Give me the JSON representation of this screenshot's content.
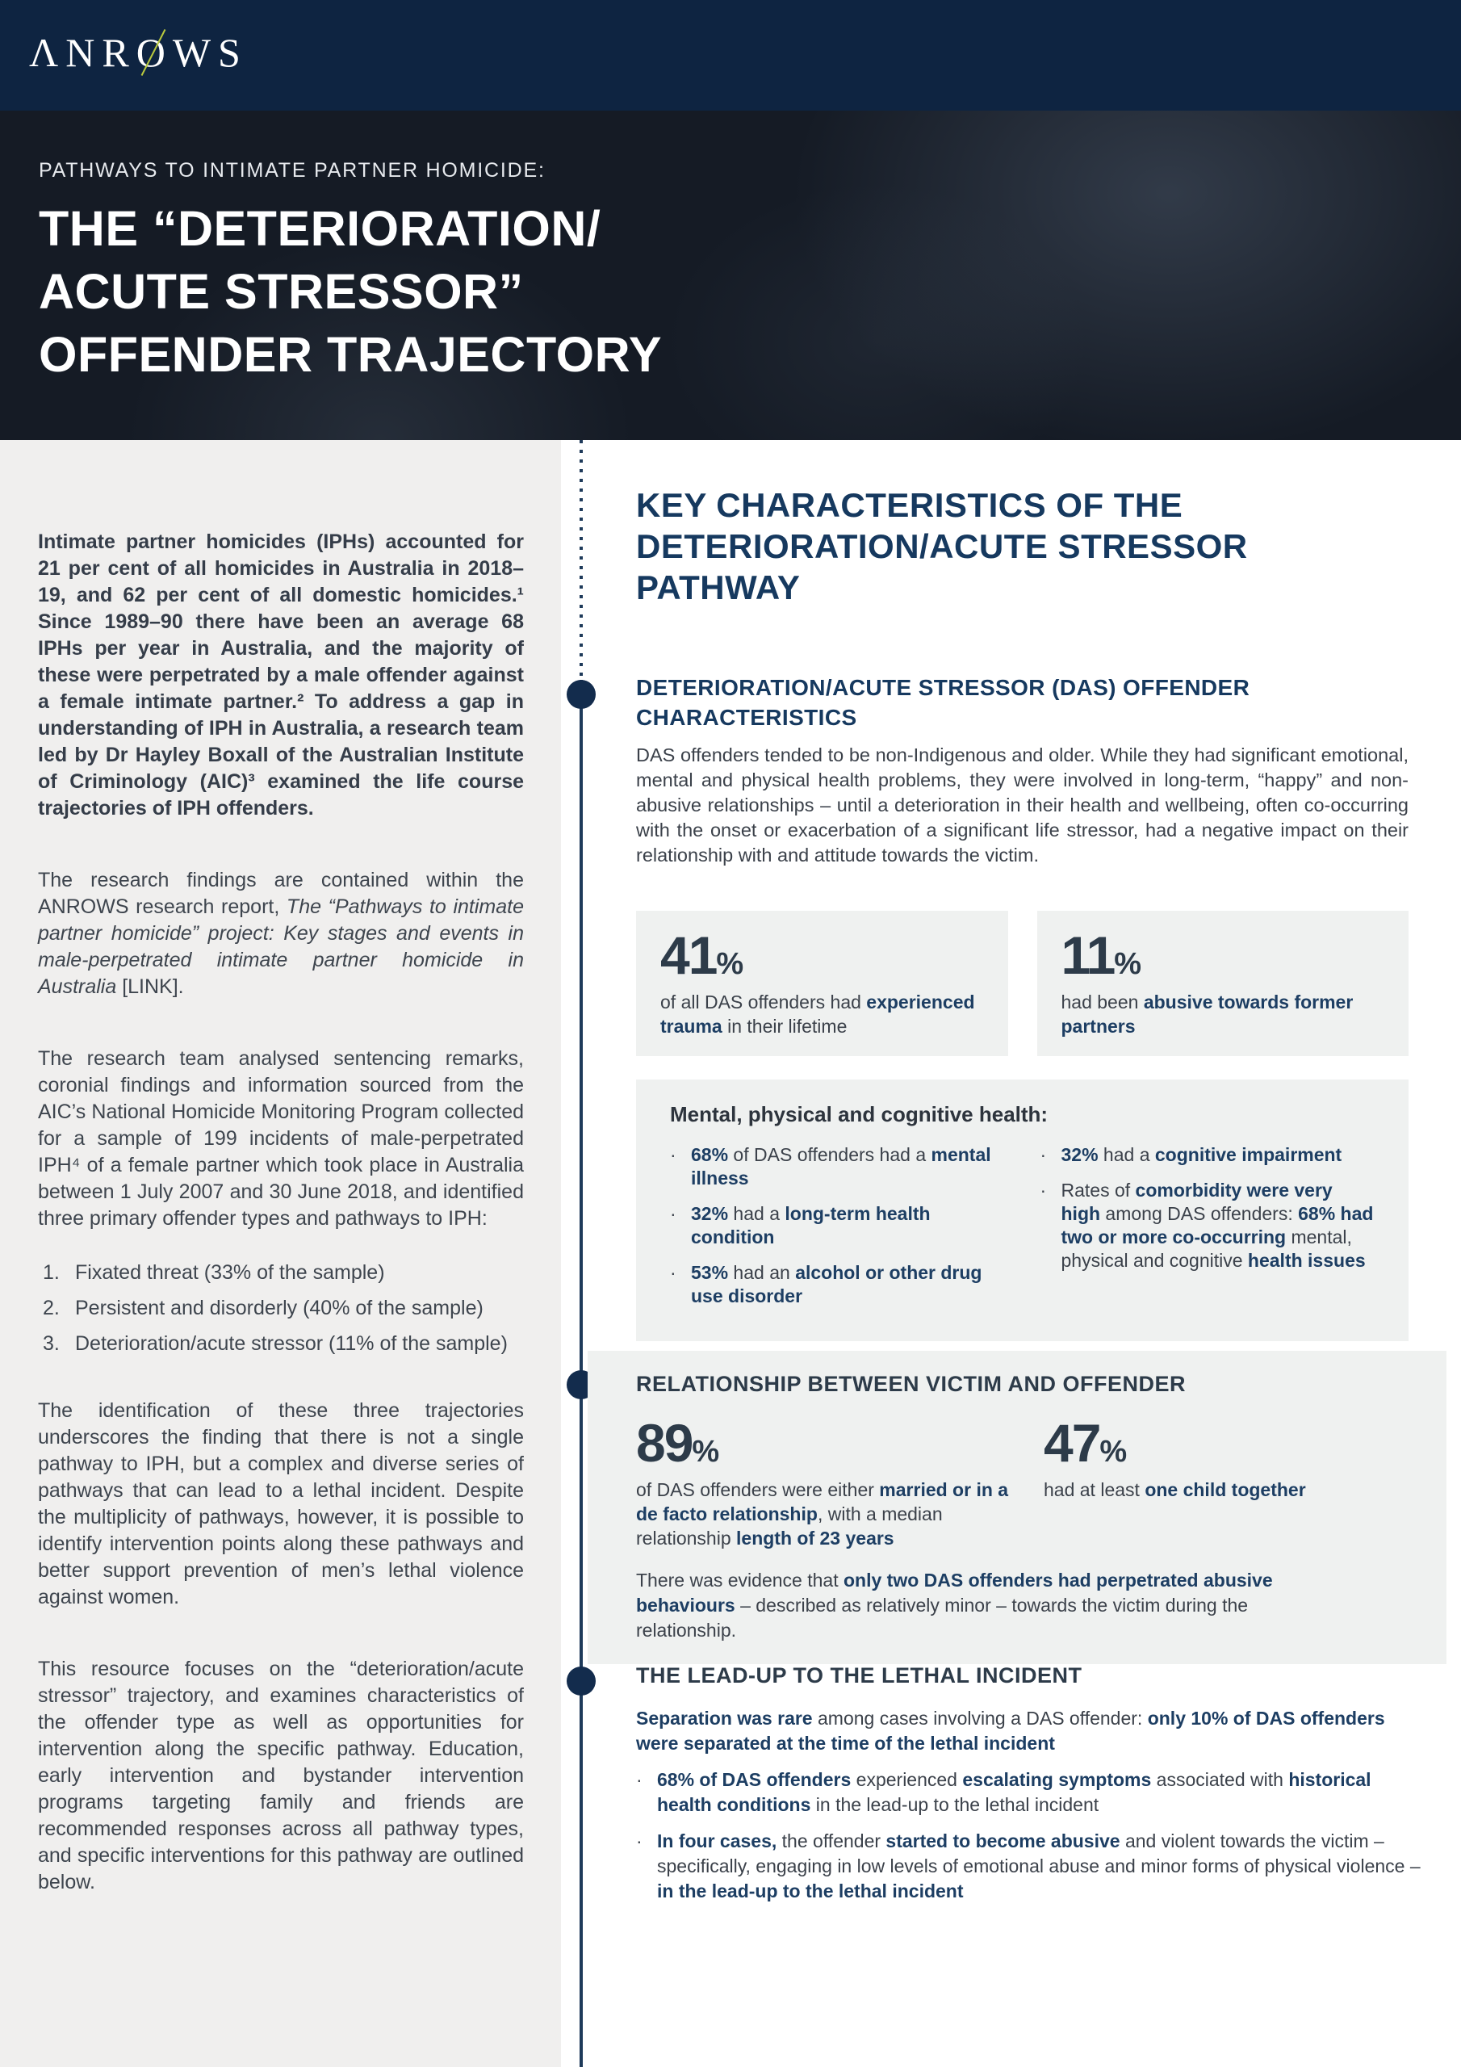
{
  "icons": {
    "bullet": "·"
  },
  "colors": {
    "topbar_navy": "#0e2441",
    "hero_bg": "#151b25",
    "heading_navy": "#16395f",
    "slate_heading": "#2d3b49",
    "bold_navy": "#1d3e63",
    "panel_bg": "#eff1f0",
    "left_bg": "#f0efee",
    "timeline": "#1e3a5a",
    "logo_slash": "#b9c93e"
  },
  "header": {
    "logo_pre": "ΛNR",
    "logo_o": "O",
    "logo_post": "WS"
  },
  "hero": {
    "eyebrow": "PATHWAYS TO INTIMATE PARTNER HOMICIDE:",
    "title_lines": [
      "THE “DETERIORATION/",
      "ACUTE STRESSOR”",
      "OFFENDER TRAJECTORY"
    ]
  },
  "left": {
    "p1": "Intimate partner homicides (IPHs) accounted for 21 per cent of all homicides in Australia in 2018–19, and 62 per cent of all domestic homicides.¹ Since 1989–90 there have been an average 68 IPHs per year in Australia, and the majority of these were perpetrated by a male offender against a female intimate partner.² To address a gap in understanding of IPH in Australia, a research team led by Dr Hayley Boxall of the Australian Institute of Criminology (AIC)³ examined the life course trajectories of IPH offenders.",
    "p2": [
      {
        "t": "The research findings are contained within the ANROWS research report, "
      },
      {
        "t": "The “Pathways to intimate partner homicide” project: Key stages and events in male-perpetrated intimate partner homicide in Australia",
        "i": 1
      },
      {
        "t": " [LINK]."
      }
    ],
    "p3": "The research team analysed sentencing remarks, coronial findings and information sourced from the AIC’s National Homicide Monitoring Program collected for a sample of 199 incidents of male-perpetrated IPH⁴ of a female partner which took place in Australia between 1 July 2007 and 30 June 2018, and identified three primary offender types and pathways to IPH:",
    "list": [
      {
        "n": "1.",
        "t": "Fixated threat (33% of the sample)"
      },
      {
        "n": "2.",
        "t": "Persistent and disorderly (40% of the sample)"
      },
      {
        "n": "3.",
        "t": "Deterioration/acute stressor (11% of the sample)"
      }
    ],
    "p4": "The identification of these three trajectories underscores the finding that there is not a single pathway to IPH, but a complex and diverse series of pathways that can lead to a lethal incident. Despite the multiplicity of pathways, however, it is possible to identify intervention points along these pathways and better support prevention of men’s lethal violence against women.",
    "p5": "This resource focuses on the “deterioration/acute stressor” trajectory, and examines characteristics of the offender type as well as opportunities for intervention along the specific pathway. Education, early intervention and bystander intervention programs targeting family and friends are recommended responses across all pathway types, and specific interventions for this pathway are outlined below."
  },
  "key_section": {
    "heading_lines": [
      "KEY CHARACTERISTICS OF THE",
      "DETERIORATION/ACUTE STRESSOR",
      "PATHWAY"
    ]
  },
  "das": {
    "heading_lines": [
      "DETERIORATION/ACUTE STRESSOR (DAS) OFFENDER",
      "CHARACTERISTICS"
    ],
    "para": "DAS offenders tended to be non-Indigenous and older. While they had significant emotional, mental and physical health problems, they were involved in long-term, “happy” and non-abusive relationships – until a deterioration in their health and wellbeing, often co-occurring with the onset or exacerbation of a significant life stressor, had a negative impact on their relationship with and attitude towards the victim.",
    "stats": [
      {
        "value": "41",
        "pct": "%",
        "caption": [
          {
            "t": "of all DAS offenders had "
          },
          {
            "t": "experienced trauma",
            "b": 1
          },
          {
            "t": " in their lifetime"
          }
        ]
      },
      {
        "value": "11",
        "pct": "%",
        "caption": [
          {
            "t": "had been "
          },
          {
            "t": "abusive towards former partners",
            "b": 1
          }
        ]
      }
    ],
    "health": {
      "title": "Mental, physical and cognitive health:",
      "col1": [
        [
          {
            "t": "68%",
            "b": 1
          },
          {
            "t": " of DAS offenders had a "
          },
          {
            "t": "mental illness",
            "b": 1
          }
        ],
        [
          {
            "t": "32%",
            "b": 1
          },
          {
            "t": " had a "
          },
          {
            "t": "long-term health condition",
            "b": 1
          }
        ],
        [
          {
            "t": "53%",
            "b": 1
          },
          {
            "t": " had an "
          },
          {
            "t": "alcohol or other drug use disorder",
            "b": 1
          }
        ]
      ],
      "col2": [
        [
          {
            "t": "32%",
            "b": 1
          },
          {
            "t": " had a "
          },
          {
            "t": "cognitive impairment",
            "b": 1
          }
        ],
        [
          {
            "t": "Rates of "
          },
          {
            "t": "comorbidity were very high",
            "b": 1
          },
          {
            "t": " among DAS offenders: "
          },
          {
            "t": "68% had two or more co-occurring",
            "b": 1
          },
          {
            "t": " mental, physical and cognitive "
          },
          {
            "t": "health issues",
            "b": 1
          }
        ]
      ]
    }
  },
  "relationship": {
    "heading": "RELATIONSHIP BETWEEN VICTIM AND OFFENDER",
    "stats": [
      {
        "value": "89",
        "pct": "%",
        "caption": [
          {
            "t": "of DAS offenders were either "
          },
          {
            "t": "married or in a de facto relationship",
            "b": 1
          },
          {
            "t": ", with a median relationship "
          },
          {
            "t": "length of 23 years",
            "b": 1
          }
        ]
      },
      {
        "value": "47",
        "pct": "%",
        "caption": [
          {
            "t": "had at least "
          },
          {
            "t": "one child together",
            "b": 1
          }
        ]
      }
    ],
    "para": [
      {
        "t": "There was evidence that "
      },
      {
        "t": "only two DAS offenders had perpetrated abusive behaviours",
        "b": 1
      },
      {
        "t": " – described as relatively minor – towards the victim during the relationship."
      }
    ]
  },
  "leadup": {
    "heading": "THE LEAD-UP TO THE LETHAL INCIDENT",
    "para": [
      {
        "t": "Separation was rare",
        "b": 1
      },
      {
        "t": " among cases involving a DAS offender: "
      },
      {
        "t": "only 10% of DAS offenders were separated at the time of the lethal incident",
        "b": 1
      }
    ],
    "bullets": [
      [
        {
          "t": "68% of DAS offenders",
          "b": 1
        },
        {
          "t": " experienced "
        },
        {
          "t": "escalating symptoms",
          "b": 1
        },
        {
          "t": " associated with "
        },
        {
          "t": "historical health conditions",
          "b": 1
        },
        {
          "t": " in the lead-up to the lethal incident"
        }
      ],
      [
        {
          "t": "In four cases,",
          "b": 1
        },
        {
          "t": " the offender "
        },
        {
          "t": "started to become abusive",
          "b": 1
        },
        {
          "t": " and violent towards the victim – specifically, engaging in low levels of emotional abuse and minor forms of physical violence – "
        },
        {
          "t": "in the lead-up to the lethal incident",
          "b": 1
        }
      ]
    ]
  }
}
